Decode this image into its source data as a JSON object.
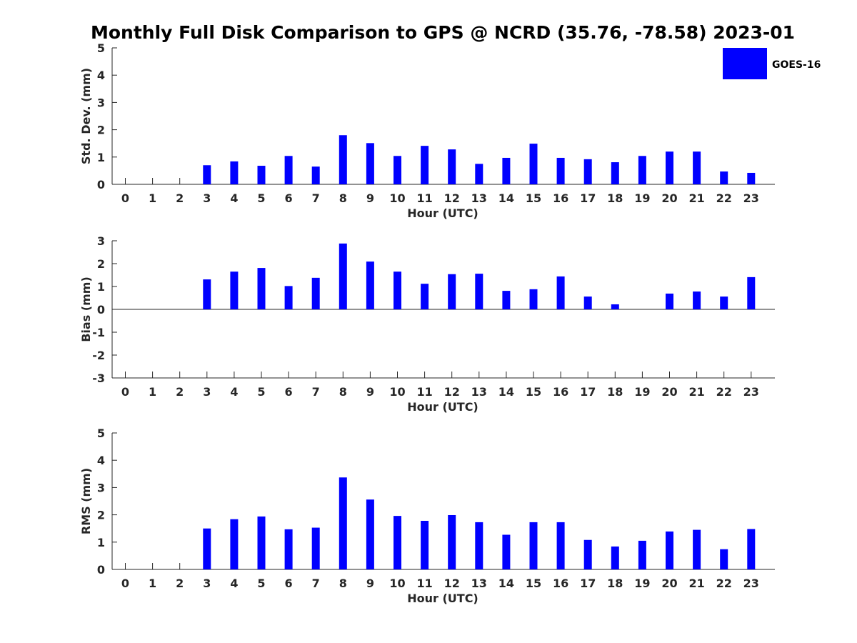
{
  "figure": {
    "title": "Monthly Full Disk Comparison to GPS @ NCRD (35.76, -78.58) 2023-01"
  },
  "legend": {
    "label": "GOES-16",
    "placement": "top-right",
    "color": "#0000ff"
  },
  "chart_data": [
    {
      "type": "bar",
      "xlabel": "Hour (UTC)",
      "ylabel": "Std. Dev. (mm)",
      "ylim": [
        0,
        5
      ],
      "yticks": [
        0,
        1,
        2,
        3,
        4,
        5
      ],
      "categories": [
        "0",
        "1",
        "2",
        "3",
        "4",
        "5",
        "6",
        "7",
        "8",
        "9",
        "10",
        "11",
        "12",
        "13",
        "14",
        "15",
        "16",
        "17",
        "18",
        "19",
        "20",
        "21",
        "22",
        "23"
      ],
      "series": [
        {
          "name": "GOES-16",
          "color": "#0000ff",
          "values": [
            null,
            null,
            null,
            0.7,
            0.84,
            0.68,
            1.04,
            0.65,
            1.8,
            1.51,
            1.04,
            1.41,
            1.28,
            0.75,
            0.97,
            1.49,
            0.97,
            0.92,
            0.81,
            1.04,
            1.2,
            1.2,
            0.47,
            0.42
          ]
        }
      ]
    },
    {
      "type": "bar",
      "xlabel": "Hour (UTC)",
      "ylabel": "Bias (mm)",
      "ylim": [
        -3,
        3
      ],
      "yticks": [
        -3,
        -2,
        -1,
        0,
        1,
        2,
        3
      ],
      "categories": [
        "0",
        "1",
        "2",
        "3",
        "4",
        "5",
        "6",
        "7",
        "8",
        "9",
        "10",
        "11",
        "12",
        "13",
        "14",
        "15",
        "16",
        "17",
        "18",
        "19",
        "20",
        "21",
        "22",
        "23"
      ],
      "series": [
        {
          "name": "GOES-16",
          "color": "#0000ff",
          "values": [
            null,
            null,
            null,
            1.31,
            1.65,
            1.81,
            1.02,
            1.38,
            2.88,
            2.09,
            1.65,
            1.12,
            1.54,
            1.56,
            0.81,
            0.88,
            1.44,
            0.56,
            0.22,
            null,
            0.69,
            0.78,
            0.56,
            1.41
          ]
        }
      ]
    },
    {
      "type": "bar",
      "xlabel": "Hour (UTC)",
      "ylabel": "RMS (mm)",
      "ylim": [
        0,
        5
      ],
      "yticks": [
        0,
        1,
        2,
        3,
        4,
        5
      ],
      "categories": [
        "0",
        "1",
        "2",
        "3",
        "4",
        "5",
        "6",
        "7",
        "8",
        "9",
        "10",
        "11",
        "12",
        "13",
        "14",
        "15",
        "16",
        "17",
        "18",
        "19",
        "20",
        "21",
        "22",
        "23"
      ],
      "series": [
        {
          "name": "GOES-16",
          "color": "#0000ff",
          "values": [
            null,
            null,
            null,
            1.5,
            1.84,
            1.94,
            1.47,
            1.53,
            3.37,
            2.56,
            1.96,
            1.78,
            1.99,
            1.73,
            1.27,
            1.73,
            1.73,
            1.08,
            0.84,
            1.05,
            1.39,
            1.45,
            0.74,
            1.48
          ]
        }
      ]
    }
  ]
}
